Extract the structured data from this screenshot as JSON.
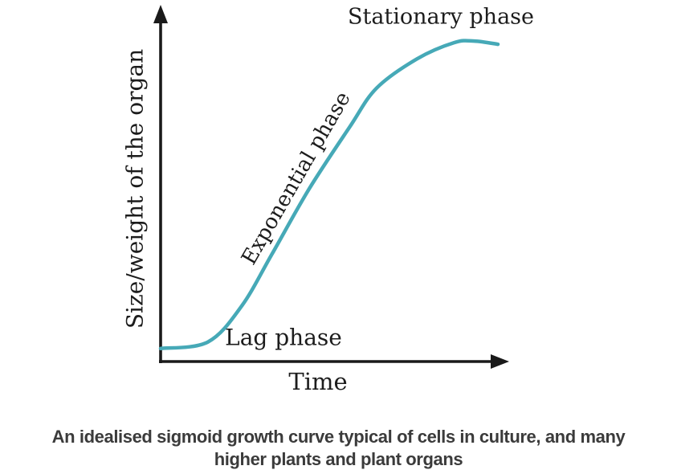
{
  "chart_data": {
    "type": "line",
    "title": "",
    "xlabel": "Time",
    "ylabel": "Size/weight of the organ",
    "x": [
      0,
      1.4,
      2.4,
      3.3,
      4.4,
      5.6,
      6.4,
      7.6,
      8.7,
      9.3,
      10
    ],
    "series": [
      {
        "name": "sigmoid-growth-curve",
        "values": [
          0.04,
          0.06,
          0.17,
          0.33,
          0.53,
          0.72,
          0.84,
          0.93,
          0.98,
          0.985,
          0.975
        ]
      }
    ],
    "xlim": [
      0,
      10.3
    ],
    "ylim": [
      0,
      1.05
    ],
    "grid": false,
    "legend": "none",
    "tick_labels": "none (qualitative sketch, unlabeled axes)",
    "curve_color": "#46a9b7",
    "axis_color": "#1a1a1a",
    "annotations": [
      {
        "label": "Lag phase",
        "x": 3.6,
        "y": 0.07,
        "rotation": 0
      },
      {
        "label": "Exponential phase",
        "x": 4.0,
        "y": 0.56,
        "rotation": -60
      },
      {
        "label": "Stationary phase",
        "x": 8.3,
        "y": 1.06,
        "rotation": 0
      }
    ]
  },
  "caption": {
    "line1": "An idealised sigmoid growth curve typical of cells in culture, and many",
    "line2": "higher plants and plant organs"
  }
}
